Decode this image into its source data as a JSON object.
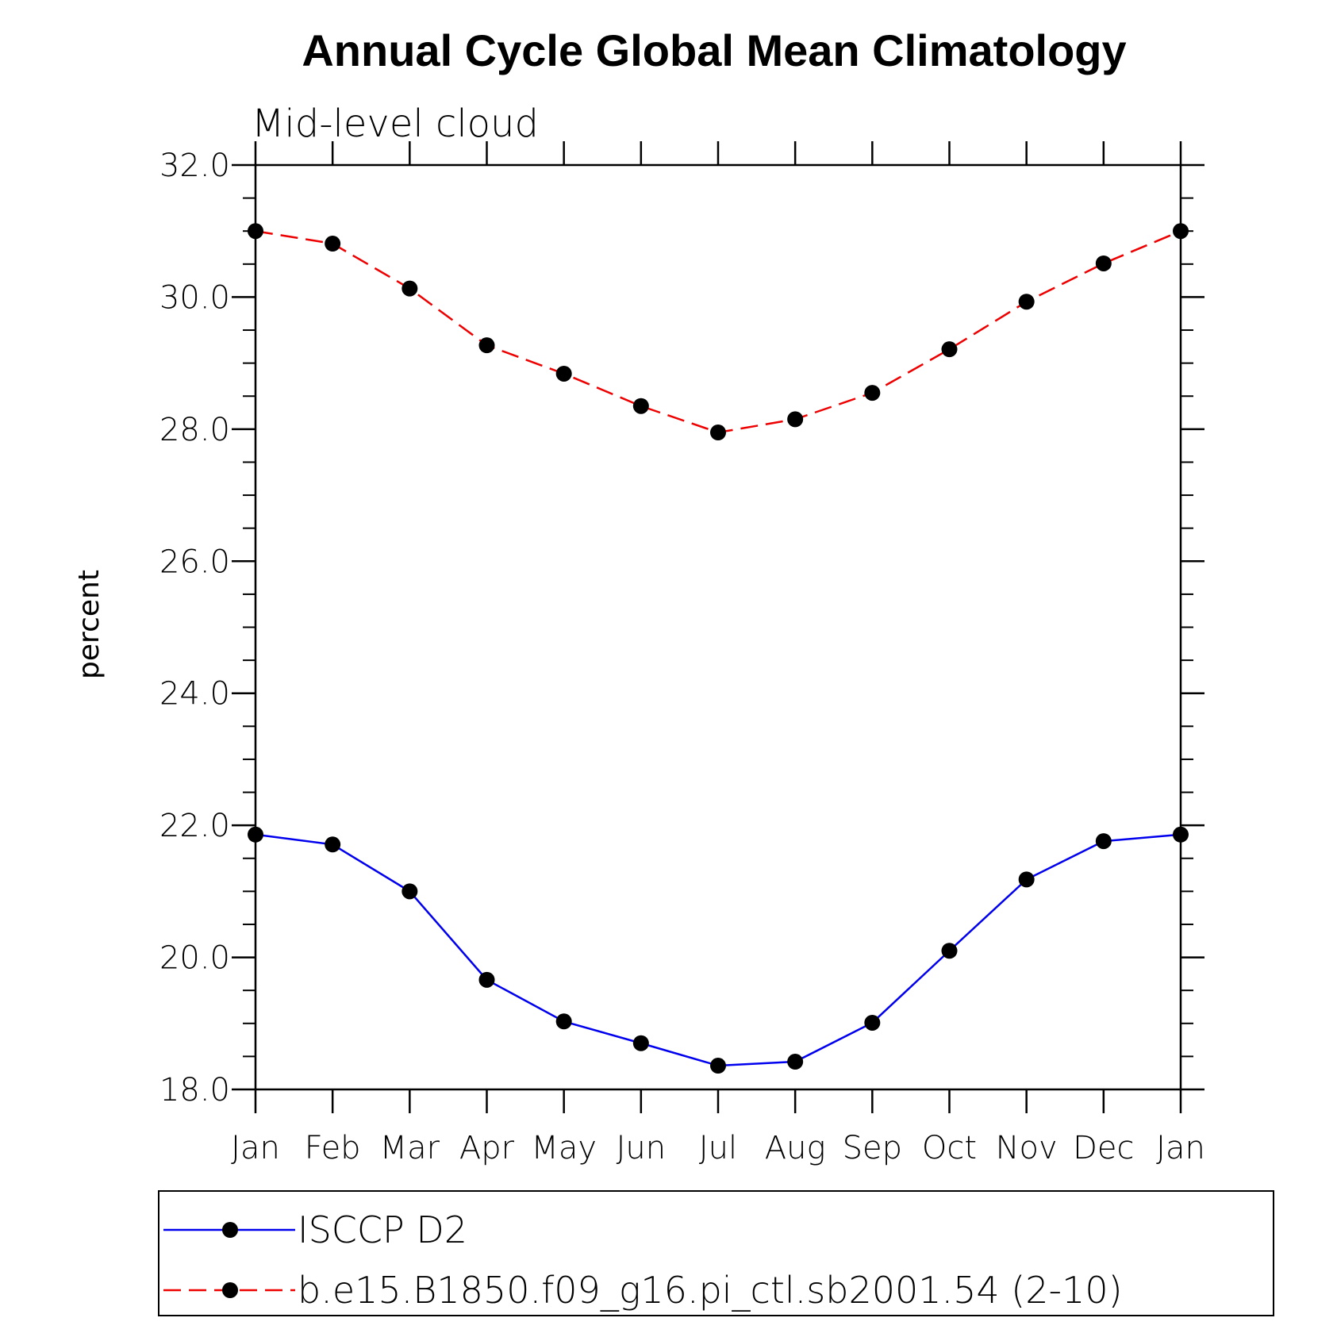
{
  "chart_data": {
    "type": "line",
    "title": "Annual Cycle Global Mean Climatology",
    "subtitle": "Mid-level cloud",
    "xlabel": "",
    "ylabel": "percent",
    "categories": [
      "Jan",
      "Feb",
      "Mar",
      "Apr",
      "May",
      "Jun",
      "Jul",
      "Aug",
      "Sep",
      "Oct",
      "Nov",
      "Dec",
      "Jan"
    ],
    "ylim": [
      18.0,
      32.0
    ],
    "yticks": [
      18.0,
      20.0,
      22.0,
      24.0,
      26.0,
      28.0,
      30.0,
      32.0
    ],
    "ytick_labels": [
      "18.0",
      "20.0",
      "22.0",
      "24.0",
      "26.0",
      "28.0",
      "30.0",
      "32.0"
    ],
    "grid": false,
    "legend_position": "bottom",
    "series": [
      {
        "name": "ISCCP D2",
        "color": "#0000ee",
        "style": "solid",
        "marker": "circle",
        "values": [
          21.86,
          21.71,
          21.0,
          19.66,
          19.03,
          18.7,
          18.36,
          18.42,
          19.01,
          20.1,
          21.18,
          21.76,
          21.86
        ]
      },
      {
        "name": "b.e15.B1850.f09_g16.pi_ctl.sb2001.54 (2-10)",
        "color": "#ee0000",
        "style": "dashed",
        "marker": "circle",
        "values": [
          31.0,
          30.81,
          30.13,
          29.27,
          28.84,
          28.35,
          27.95,
          28.15,
          28.55,
          29.21,
          29.93,
          30.51,
          31.0
        ]
      }
    ]
  }
}
